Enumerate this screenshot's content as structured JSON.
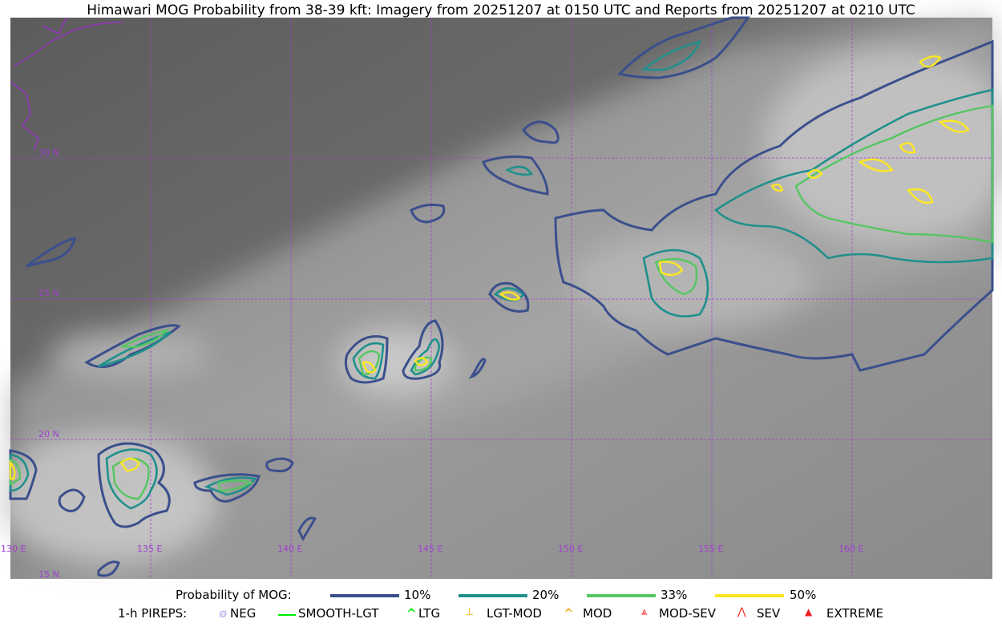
{
  "title": "Himawari MOG Probability from 38-39 kft: Imagery from 20251207 at 0150 UTC and Reports from 20251207 at 0210 UTC",
  "map": {
    "lon_labels": [
      "130 E",
      "135 E",
      "140 E",
      "145 E",
      "150 E",
      "155 E",
      "160 E"
    ],
    "lat_labels": [
      "30 N",
      "25 N",
      "20 N",
      "15 N"
    ],
    "grid_color": "#a040d0",
    "coast_color": "#a030d0"
  },
  "legend": {
    "probability_label": "Probability of MOG:",
    "probability_levels": [
      {
        "label": "10%",
        "color": "#3b4f8c"
      },
      {
        "label": "20%",
        "color": "#20908c"
      },
      {
        "label": "33%",
        "color": "#55c662"
      },
      {
        "label": "50%",
        "color": "#fde724"
      }
    ],
    "pireps_label": "1-h PIREPS:",
    "pireps": [
      {
        "label": "NEG",
        "color": "#c8c8f0",
        "icon": "neg-circle-icon"
      },
      {
        "label": "SMOOTH-LGT",
        "color": "#00ee00",
        "icon": "line-icon"
      },
      {
        "label": "LTG",
        "color": "#00ee00",
        "icon": "caret-icon"
      },
      {
        "label": "LGT-MOD",
        "color": "#f8b020",
        "icon": "caret-bar-icon"
      },
      {
        "label": "MOD",
        "color": "#f8b020",
        "icon": "caret-icon"
      },
      {
        "label": "MOD-SEV",
        "color": "#f02020",
        "icon": "double-caret-bar-icon"
      },
      {
        "label": "SEV",
        "color": "#f02020",
        "icon": "double-caret-icon"
      },
      {
        "label": "EXTREME",
        "color": "#f02020",
        "icon": "filled-triangle-icon"
      }
    ]
  }
}
